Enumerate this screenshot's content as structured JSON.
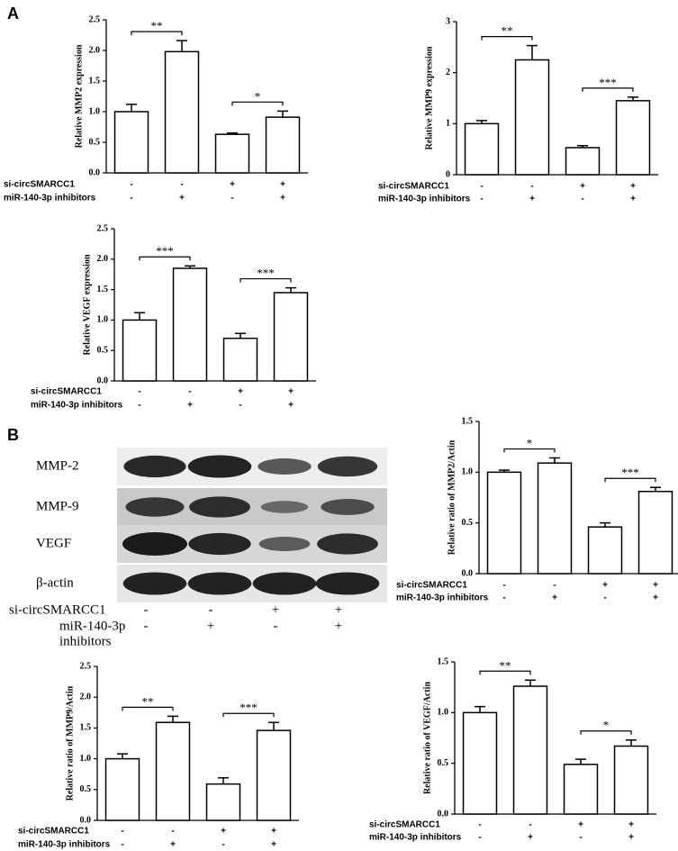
{
  "panels": [
    "A",
    "B"
  ],
  "chart_data": [
    {
      "type": "bar",
      "y_label": "Relative  MMP2 expression",
      "ylim": [
        0,
        2.5
      ],
      "yticks": [
        {
          "value": 0,
          "label": "0.0"
        },
        {
          "value": 0.5,
          "label": "0.5"
        },
        {
          "value": 1,
          "label": "1.0"
        },
        {
          "value": 1.5,
          "label": "1.5"
        },
        {
          "value": 2,
          "label": "2.0"
        },
        {
          "value": 2.5,
          "label": "2.5"
        }
      ],
      "values": [
        1.0,
        1.98,
        0.63,
        0.91
      ],
      "errors": [
        0.12,
        0.18,
        0.02,
        0.1
      ],
      "significance": [
        "**",
        "*"
      ],
      "conditions": [
        {
          "label": "si-circSMARCC1",
          "signs": [
            "-",
            "-",
            "+",
            "+"
          ]
        },
        {
          "label": "miR-140-3p inhibitors",
          "signs": [
            "-",
            "+",
            "-",
            "+"
          ]
        }
      ]
    },
    {
      "type": "bar",
      "y_label": "Relative  MMP9 expression",
      "ylim": [
        0,
        3
      ],
      "yticks": [
        0,
        1,
        2,
        3
      ],
      "values": [
        1.0,
        2.25,
        0.53,
        1.45
      ],
      "errors": [
        0.06,
        0.28,
        0.04,
        0.07
      ],
      "significance": [
        "**",
        "***"
      ],
      "conditions": [
        {
          "label": "si-circSMARCC1",
          "signs": [
            "-",
            "-",
            "+",
            "+"
          ]
        },
        {
          "label": "miR-140-3p inhibitors",
          "signs": [
            "-",
            "+",
            "-",
            "+"
          ]
        }
      ]
    },
    {
      "type": "bar",
      "y_label": "Relative  VEGF expression",
      "ylim": [
        0,
        2.5
      ],
      "yticks": [
        {
          "value": 0,
          "label": "0.0"
        },
        {
          "value": 0.5,
          "label": "0.5"
        },
        {
          "value": 1,
          "label": "1.0"
        },
        {
          "value": 1.5,
          "label": "1.5"
        },
        {
          "value": 2,
          "label": "2.0"
        },
        {
          "value": 2.5,
          "label": "2.5"
        }
      ],
      "values": [
        1.0,
        1.85,
        0.7,
        1.45
      ],
      "errors": [
        0.12,
        0.04,
        0.08,
        0.08
      ],
      "significance": [
        "***",
        "***"
      ],
      "conditions": [
        {
          "label": "si-circSMARCC1",
          "signs": [
            "-",
            "-",
            "+",
            "+"
          ]
        },
        {
          "label": "miR-140-3p inhibitors",
          "signs": [
            "-",
            "+",
            "-",
            "+"
          ]
        }
      ]
    },
    {
      "type": "bar",
      "y_label": "Relative ratio of MMP2/Actin",
      "ylim": [
        0,
        1.5
      ],
      "yticks": [
        {
          "value": 0,
          "label": "0.0"
        },
        {
          "value": 0.5,
          "label": "0.5"
        },
        {
          "value": 1,
          "label": "1.0"
        },
        {
          "value": 1.5,
          "label": "1.5"
        }
      ],
      "values": [
        1.0,
        1.09,
        0.46,
        0.81
      ],
      "errors": [
        0.02,
        0.05,
        0.04,
        0.04
      ],
      "significance": [
        "*",
        "***"
      ],
      "conditions": [
        {
          "label": "si-circSMARCC1",
          "signs": [
            "-",
            "-",
            "+",
            "+"
          ]
        },
        {
          "label": "miR-140-3p inhibitors",
          "signs": [
            "-",
            "+",
            "-",
            "+"
          ]
        }
      ]
    },
    {
      "type": "bar",
      "y_label": "Relative ratio of MMP9/Actin",
      "ylim": [
        0,
        2.5
      ],
      "yticks": [
        {
          "value": 0,
          "label": "0.0"
        },
        {
          "value": 0.5,
          "label": "0.5"
        },
        {
          "value": 1,
          "label": "1.0"
        },
        {
          "value": 1.5,
          "label": "1.5"
        },
        {
          "value": 2,
          "label": "2.0"
        },
        {
          "value": 2.5,
          "label": "2.5"
        }
      ],
      "values": [
        1.0,
        1.59,
        0.59,
        1.46
      ],
      "errors": [
        0.08,
        0.1,
        0.1,
        0.13
      ],
      "significance": [
        "**",
        "***"
      ],
      "conditions": [
        {
          "label": "si-circSMARCC1",
          "signs": [
            "-",
            "-",
            "+",
            "+"
          ]
        },
        {
          "label": "miR-140-3p inhibitors",
          "signs": [
            "-",
            "+",
            "-",
            "+"
          ]
        }
      ]
    },
    {
      "type": "bar",
      "y_label": "Relative ratio of VEGF/Actin",
      "ylim": [
        0,
        1.5
      ],
      "yticks": [
        {
          "value": 0,
          "label": "0.0"
        },
        {
          "value": 0.5,
          "label": "0.5"
        },
        {
          "value": 1,
          "label": "1.0"
        },
        {
          "value": 1.5,
          "label": "1.5"
        }
      ],
      "values": [
        1.0,
        1.26,
        0.49,
        0.67
      ],
      "errors": [
        0.06,
        0.06,
        0.05,
        0.06
      ],
      "significance": [
        "**",
        "*"
      ],
      "conditions": [
        {
          "label": "si-circSMARCC1",
          "signs": [
            "-",
            "-",
            "+",
            "+"
          ]
        },
        {
          "label": "miR-140-3p inhibitors",
          "signs": [
            "-",
            "+",
            "-",
            "+"
          ]
        }
      ]
    }
  ],
  "blot": {
    "proteins": [
      "MMP-2",
      "MMP-9",
      "VEGF",
      "β-actin"
    ],
    "conditions": [
      {
        "lines": [
          "si-circSMARCC1"
        ],
        "signs": [
          "-",
          "-",
          "+",
          "+"
        ]
      },
      {
        "lines": [
          "miR-140-3p",
          "inhibitors"
        ],
        "signs": [
          "-",
          "+",
          "-",
          "+"
        ]
      }
    ]
  }
}
